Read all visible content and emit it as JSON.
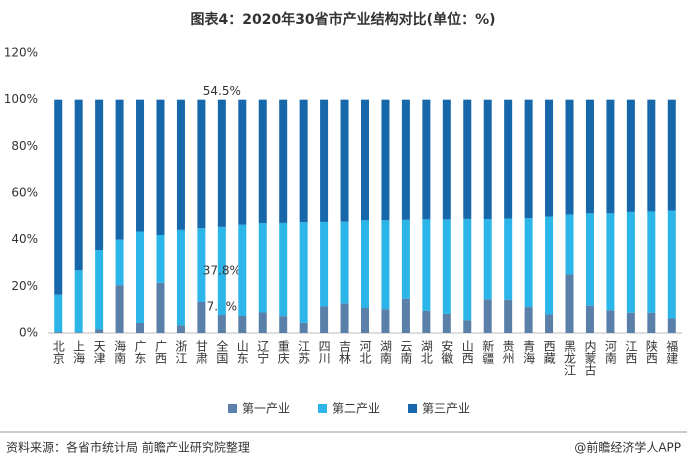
{
  "chart_data": {
    "type": "stacked_bar",
    "title": "图表4：2020年30省市产业结构对比(单位：%)",
    "source": "资料来源：各省市统计局 前瞻产业研究院整理",
    "credit": "@前瞻经济学人APP",
    "categories": [
      "北京",
      "上海",
      "天津",
      "海南",
      "广东",
      "广西",
      "浙江",
      "甘肃",
      "全国",
      "山东",
      "辽宁",
      "重庆",
      "江苏",
      "四川",
      "吉林",
      "河北",
      "湖南",
      "云南",
      "湖北",
      "安徽",
      "山西",
      "新疆",
      "贵州",
      "青海",
      "西藏",
      "黑龙江",
      "内蒙古",
      "河南",
      "江西",
      "陕西",
      "福建"
    ],
    "series": [
      {
        "name": "第一产业",
        "color": "#5a7fa8",
        "values": [
          0.4,
          0.3,
          1.5,
          20.5,
          4.3,
          21.5,
          3.3,
          13.3,
          7.7,
          7.3,
          8.8,
          7.2,
          4.4,
          11.4,
          12.6,
          10.7,
          10.2,
          14.7,
          9.5,
          8.2,
          5.4,
          14.4,
          14.2,
          11.1,
          7.9,
          25.1,
          11.7,
          9.7,
          8.7,
          8.7,
          6.2
        ],
        "value_labels": [
          null,
          null,
          null,
          null,
          null,
          null,
          null,
          null,
          "7.7%",
          null,
          null,
          null,
          null,
          null,
          null,
          null,
          null,
          null,
          null,
          null,
          null,
          null,
          null,
          null,
          null,
          null,
          null,
          null,
          null,
          null,
          null
        ]
      },
      {
        "name": "第二产业",
        "color": "#2bb5e8",
        "values": [
          16.0,
          26.6,
          34.0,
          19.5,
          39.2,
          20.5,
          40.9,
          31.6,
          37.8,
          39.1,
          38.3,
          40.0,
          43.1,
          36.2,
          35.1,
          37.6,
          38.1,
          33.8,
          39.2,
          40.5,
          43.5,
          34.4,
          34.8,
          38.1,
          42.0,
          25.7,
          39.6,
          41.6,
          43.2,
          43.4,
          46.3
        ],
        "value_labels": [
          null,
          null,
          null,
          null,
          null,
          null,
          null,
          null,
          "37.8%",
          null,
          null,
          null,
          null,
          null,
          null,
          null,
          null,
          null,
          null,
          null,
          null,
          null,
          null,
          null,
          null,
          null,
          null,
          null,
          null,
          null,
          null
        ]
      },
      {
        "name": "第三产业",
        "color": "#1767ab",
        "values": [
          83.6,
          73.1,
          64.5,
          60.0,
          56.5,
          58.0,
          55.8,
          55.1,
          54.5,
          53.6,
          52.9,
          52.8,
          52.5,
          52.4,
          52.3,
          51.7,
          51.7,
          51.5,
          51.3,
          51.3,
          51.1,
          51.2,
          51.0,
          50.8,
          50.1,
          49.2,
          48.7,
          48.7,
          48.1,
          47.9,
          47.5
        ],
        "value_labels": [
          null,
          null,
          null,
          null,
          null,
          null,
          null,
          null,
          "54.5%",
          null,
          null,
          null,
          null,
          null,
          null,
          null,
          null,
          null,
          null,
          null,
          null,
          null,
          null,
          null,
          null,
          null,
          null,
          null,
          null,
          null,
          null
        ]
      }
    ],
    "ylim": [
      0,
      120
    ],
    "yticks": [
      {
        "value": 0,
        "label": "0%"
      },
      {
        "value": 20,
        "label": "20%"
      },
      {
        "value": 40,
        "label": "40%"
      },
      {
        "value": 60,
        "label": "60%"
      },
      {
        "value": 80,
        "label": "80%"
      },
      {
        "value": 100,
        "label": "100%"
      },
      {
        "value": 120,
        "label": "120%"
      }
    ],
    "grid": false
  }
}
